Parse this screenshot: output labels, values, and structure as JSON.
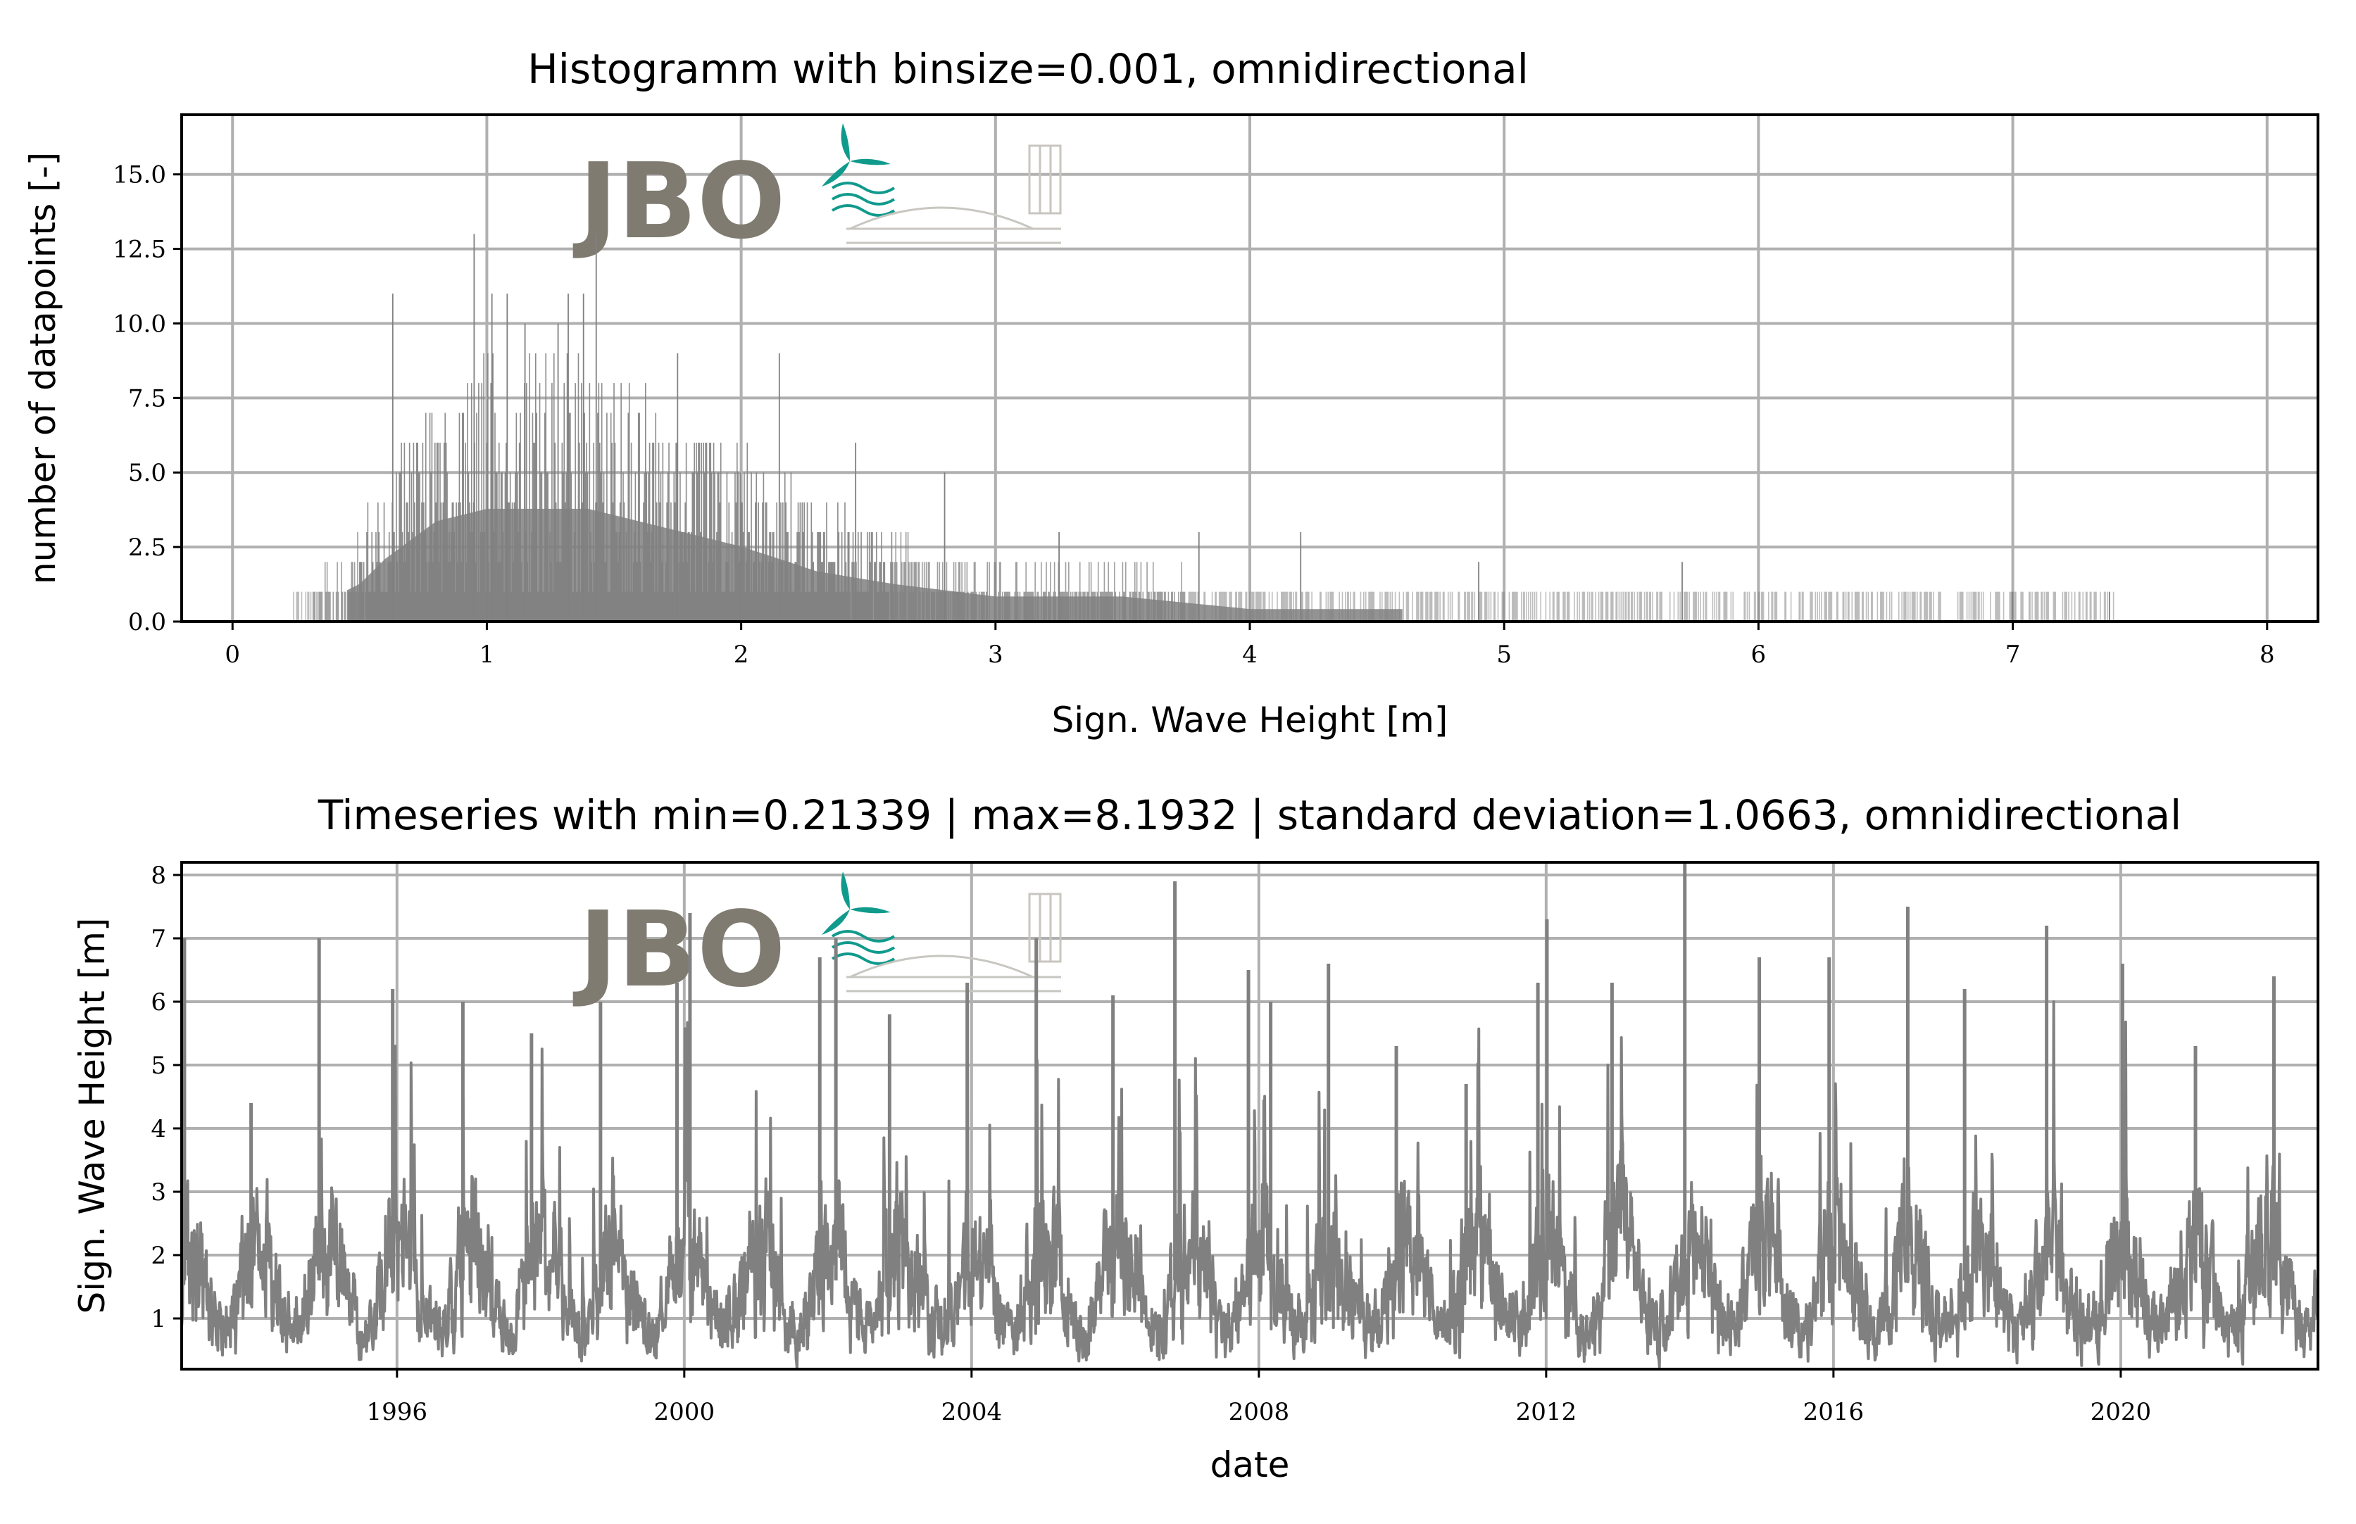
{
  "brand": {
    "logo_text": "JBO",
    "colors": {
      "logo_gray": "#7f7b70",
      "logo_teal": "#109a8c"
    }
  },
  "colors": {
    "bars": "#808080",
    "line": "#808080",
    "grid": "#b0b0b0"
  },
  "chart_data": [
    {
      "type": "bar",
      "title": "Histogramm with binsize=0.001, omnidirectional",
      "xlabel": "Sign. Wave Height [m]",
      "ylabel": "number of datapoints [-]",
      "xlim": [
        -0.2,
        8.2
      ],
      "ylim": [
        0,
        17
      ],
      "xticks": [
        0,
        1,
        2,
        3,
        4,
        5,
        6,
        7,
        8
      ],
      "xtick_labels": [
        "0",
        "1",
        "2",
        "3",
        "4",
        "5",
        "6",
        "7",
        "8"
      ],
      "yticks": [
        0,
        2.5,
        5,
        7.5,
        10,
        12.5,
        15
      ],
      "ytick_labels": [
        "0.0",
        "2.5",
        "5.0",
        "7.5",
        "10.0",
        "12.5",
        "15.0"
      ],
      "grid": true,
      "binsize": 0.001,
      "profile_envelope": {
        "x": [
          0.24,
          0.4,
          0.5,
          0.6,
          0.8,
          1.0,
          1.2,
          1.4,
          1.6,
          1.8,
          2.0,
          2.3,
          2.6,
          3.0,
          3.5,
          4.0,
          4.5,
          5.0,
          5.5,
          6.0,
          6.5,
          7.0,
          7.4
        ],
        "typical_max_count": [
          1,
          2,
          3,
          5,
          8,
          9,
          9,
          9,
          8,
          7,
          6,
          4,
          3,
          2,
          2,
          1,
          1,
          1,
          1,
          1,
          1,
          1,
          1
        ]
      },
      "notable_bins": [
        {
          "x": 0.95,
          "count": 13
        },
        {
          "x": 1.43,
          "count": 13
        },
        {
          "x": 0.63,
          "count": 11
        },
        {
          "x": 1.02,
          "count": 11
        },
        {
          "x": 1.08,
          "count": 11
        },
        {
          "x": 1.32,
          "count": 11
        },
        {
          "x": 1.38,
          "count": 11
        },
        {
          "x": 1.15,
          "count": 10
        },
        {
          "x": 1.28,
          "count": 10
        },
        {
          "x": 2.15,
          "count": 9
        },
        {
          "x": 1.75,
          "count": 9
        },
        {
          "x": 2.45,
          "count": 6
        },
        {
          "x": 2.8,
          "count": 5
        },
        {
          "x": 3.25,
          "count": 3
        },
        {
          "x": 3.8,
          "count": 3
        },
        {
          "x": 4.2,
          "count": 3
        },
        {
          "x": 4.9,
          "count": 2
        },
        {
          "x": 5.7,
          "count": 2
        },
        {
          "x": 7.0,
          "count": 1
        },
        {
          "x": 7.38,
          "count": 1
        }
      ]
    },
    {
      "type": "line",
      "title": "Timeseries with min=0.21339 | max=8.1932 | standard deviation=1.0663, omnidirectional",
      "xlabel": "date",
      "ylabel": "Sign. Wave Height [m]",
      "xlim": [
        "1993-01-01",
        "2022-09-30"
      ],
      "ylim": [
        0.2,
        8.2
      ],
      "xticks": [
        "1996-01-01",
        "2000-01-01",
        "2004-01-01",
        "2008-01-01",
        "2012-01-01",
        "2016-01-01",
        "2020-01-01"
      ],
      "xtick_labels": [
        "1996",
        "2000",
        "2004",
        "2008",
        "2012",
        "2016",
        "2020"
      ],
      "yticks": [
        1,
        2,
        3,
        4,
        5,
        6,
        7,
        8
      ],
      "ytick_labels": [
        "1",
        "2",
        "3",
        "4",
        "5",
        "6",
        "7",
        "8"
      ],
      "grid": true,
      "stats": {
        "min": 0.21339,
        "max": 8.1932,
        "std": 1.0663
      },
      "winter_peaks": [
        {
          "date": "1993-01-15",
          "value": 7.0
        },
        {
          "date": "1993-12-20",
          "value": 4.4
        },
        {
          "date": "1994-12-01",
          "value": 7.0
        },
        {
          "date": "1995-12-10",
          "value": 6.2
        },
        {
          "date": "1996-12-01",
          "value": 6.0
        },
        {
          "date": "1997-11-15",
          "value": 5.5
        },
        {
          "date": "1998-11-01",
          "value": 6.0
        },
        {
          "date": "1999-11-25",
          "value": 6.3
        },
        {
          "date": "2000-01-30",
          "value": 7.4
        },
        {
          "date": "2001-11-20",
          "value": 6.7
        },
        {
          "date": "2002-02-10",
          "value": 7.0
        },
        {
          "date": "2002-11-10",
          "value": 5.8
        },
        {
          "date": "2003-12-10",
          "value": 6.3
        },
        {
          "date": "2004-11-25",
          "value": 7.0
        },
        {
          "date": "2005-12-20",
          "value": 6.1
        },
        {
          "date": "2006-10-31",
          "value": 7.9
        },
        {
          "date": "2007-11-09",
          "value": 6.5
        },
        {
          "date": "2008-03-01",
          "value": 6.0
        },
        {
          "date": "2008-12-20",
          "value": 6.6
        },
        {
          "date": "2009-11-30",
          "value": 5.3
        },
        {
          "date": "2010-11-20",
          "value": 4.7
        },
        {
          "date": "2011-11-20",
          "value": 6.3
        },
        {
          "date": "2012-01-05",
          "value": 7.3
        },
        {
          "date": "2012-12-01",
          "value": 6.3
        },
        {
          "date": "2013-12-06",
          "value": 8.2
        },
        {
          "date": "2014-12-20",
          "value": 6.7
        },
        {
          "date": "2015-12-10",
          "value": 6.7
        },
        {
          "date": "2017-01-13",
          "value": 7.5
        },
        {
          "date": "2017-10-29",
          "value": 6.2
        },
        {
          "date": "2018-12-20",
          "value": 7.2
        },
        {
          "date": "2020-01-10",
          "value": 6.6
        },
        {
          "date": "2021-01-15",
          "value": 5.3
        },
        {
          "date": "2022-02-18",
          "value": 6.4
        }
      ],
      "typical_range": {
        "summer_low": [
          0.3,
          1.5
        ],
        "winter_base": [
          1.0,
          3.5
        ]
      }
    }
  ]
}
